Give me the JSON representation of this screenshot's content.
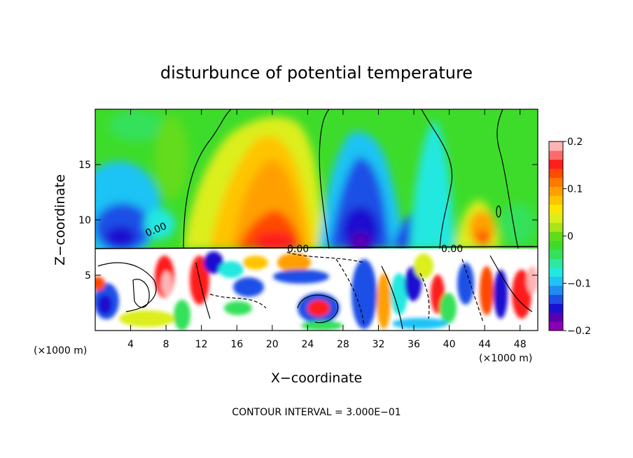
{
  "chart_data": {
    "type": "heatmap",
    "title": "disturbunce of potential temperature",
    "xlabel": "X−coordinate",
    "ylabel": "Z−coordinate",
    "x_unit": "(×1000 m)",
    "z_unit": "(×1000 m)",
    "xlim": [
      0,
      50
    ],
    "ylim": [
      0,
      20
    ],
    "x_ticks": [
      4,
      8,
      12,
      16,
      20,
      24,
      28,
      32,
      36,
      40,
      44,
      48
    ],
    "y_ticks": [
      5,
      10,
      15
    ],
    "colorbar": {
      "range": [
        -0.2,
        0.2
      ],
      "tick_values": [
        0.2,
        0.1,
        0,
        -0.1,
        -0.2
      ],
      "tick_labels": [
        "0.2",
        "0.1",
        "0",
        "−0.1",
        "−0.2"
      ],
      "colors": [
        "#8b00b5",
        "#5a00b0",
        "#1c10d0",
        "#1f4fe6",
        "#1e8cf0",
        "#1fc3f5",
        "#22e8e0",
        "#2ee8a0",
        "#36e05a",
        "#3edc2a",
        "#62dc1a",
        "#a8e41a",
        "#dcee1a",
        "#ffe600",
        "#ffc400",
        "#ffa000",
        "#ff7a00",
        "#ff4a00",
        "#ff1e1e",
        "#ff6a6a",
        "#ffb4b4"
      ]
    },
    "contour_labels": [
      "0.00",
      "0.00",
      "0.00"
    ],
    "contour_interval_note": "CONTOUR INTERVAL = 3.000E−01",
    "upper_layer_features": [
      {
        "name": "warm plume",
        "x_center": 22,
        "z_top": 18,
        "value": 0.13
      },
      {
        "name": "cold plume",
        "x_center": 30,
        "z_top": 17,
        "value": -0.15
      },
      {
        "name": "cold plume",
        "x_center": 4,
        "z_top": 12,
        "value": -0.14
      },
      {
        "name": "warm plume",
        "x_center": 43,
        "z_top": 11,
        "value": 0.1
      }
    ],
    "layer_interface_z": 7.5
  }
}
